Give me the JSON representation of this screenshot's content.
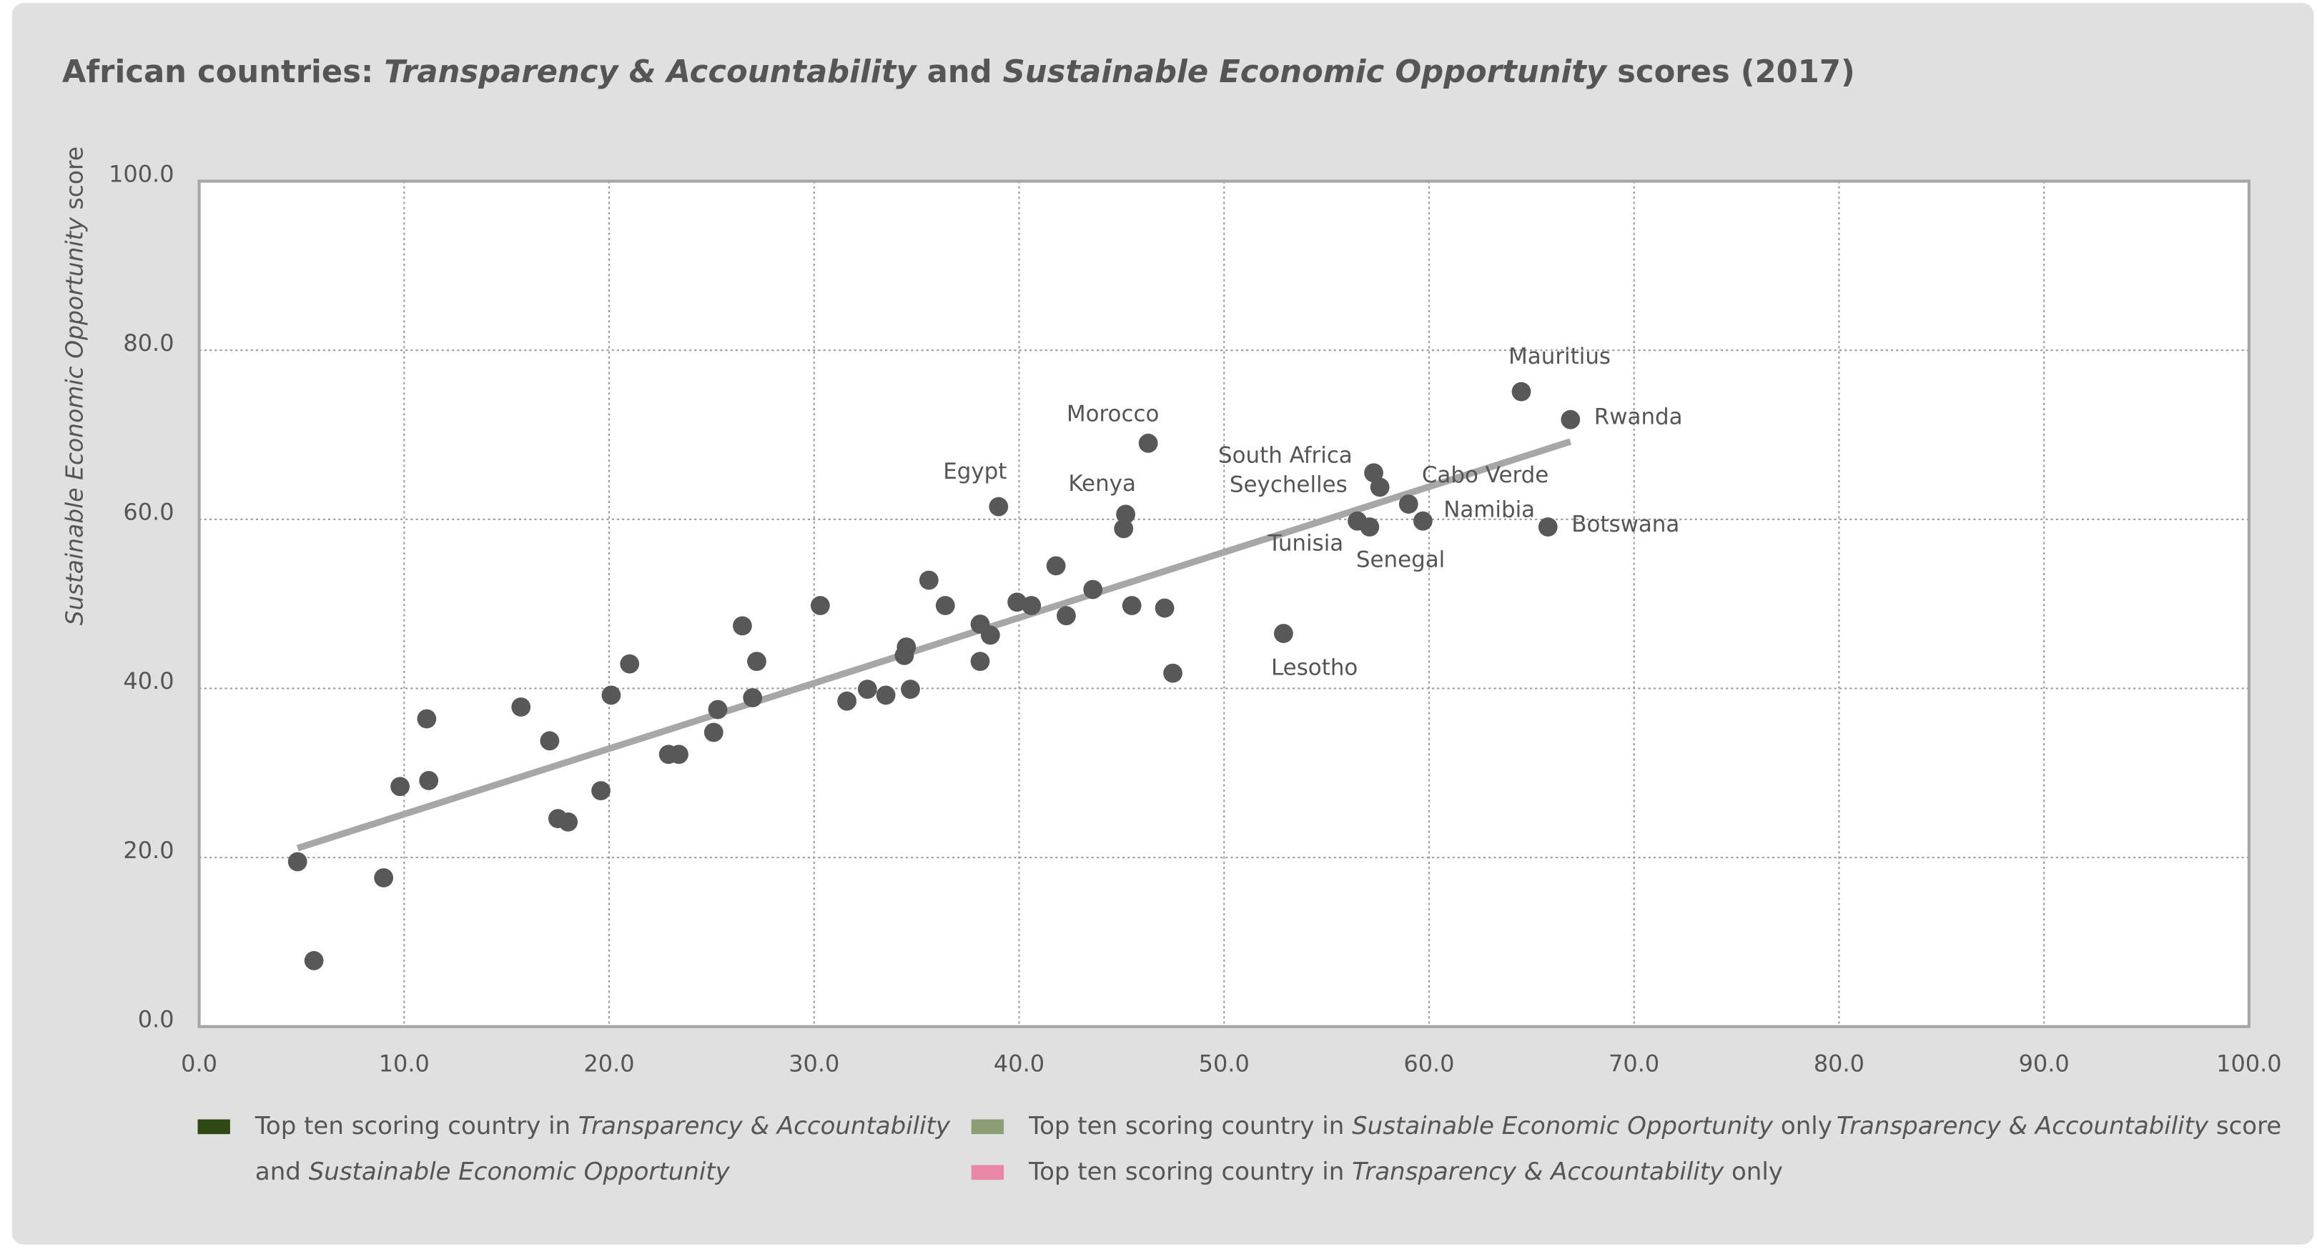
{
  "chart_data": {
    "type": "scatter",
    "title": [
      "African countries: ",
      "Transparency & Accountability",
      " and ",
      "Sustainable Economic Opportunity",
      " scores (2017)"
    ],
    "x_label": [
      "Transparency & Accountability",
      " score"
    ],
    "y_label": [
      "Sustainable Economic Opportunity",
      " score"
    ],
    "xlim": [
      0,
      100
    ],
    "ylim": [
      0,
      100
    ],
    "xticks": [
      {
        "value": 0,
        "label": "0.0"
      },
      {
        "value": 10,
        "label": "10.0"
      },
      {
        "value": 20,
        "label": "20.0"
      },
      {
        "value": 30,
        "label": "30.0"
      },
      {
        "value": 40,
        "label": "40.0"
      },
      {
        "value": 50,
        "label": "50.0"
      },
      {
        "value": 60,
        "label": "60.0"
      },
      {
        "value": 70,
        "label": "70.0"
      },
      {
        "value": 80,
        "label": "80.0"
      },
      {
        "value": 90,
        "label": "90.0"
      },
      {
        "value": 100,
        "label": "100.0"
      }
    ],
    "yticks": [
      {
        "value": 0,
        "label": "0.0"
      },
      {
        "value": 20,
        "label": "20.0"
      },
      {
        "value": 40,
        "label": "40.0"
      },
      {
        "value": 60,
        "label": "60.0"
      },
      {
        "value": 80,
        "label": "80.0"
      },
      {
        "value": 100,
        "label": "100.0"
      }
    ],
    "grid": true,
    "color": "#585858",
    "x": [
      4.8,
      5.6,
      9.0,
      9.8,
      11.1,
      11.2,
      15.7,
      17.1,
      17.5,
      18.0,
      19.6,
      20.1,
      21.0,
      22.9,
      23.4,
      25.1,
      25.3,
      26.5,
      27.0,
      27.2,
      30.3,
      31.6,
      32.6,
      33.5,
      34.4,
      34.5,
      34.7,
      35.6,
      36.4,
      38.1,
      38.1,
      38.6,
      39.0,
      39.9,
      40.6,
      41.8,
      42.3,
      43.6,
      45.1,
      45.2,
      45.5,
      46.3,
      47.1,
      47.5,
      52.9,
      56.5,
      57.1,
      57.3,
      57.6,
      59.0,
      59.7,
      64.5,
      65.8,
      66.9
    ],
    "values": [
      19.5,
      7.8,
      17.6,
      28.4,
      36.4,
      29.1,
      37.8,
      33.8,
      24.6,
      24.2,
      27.9,
      39.2,
      42.9,
      32.2,
      32.2,
      34.8,
      37.5,
      47.4,
      38.9,
      43.2,
      49.8,
      38.5,
      39.9,
      39.2,
      43.9,
      44.9,
      39.9,
      52.8,
      49.8,
      47.6,
      43.2,
      46.3,
      61.5,
      50.2,
      49.8,
      54.5,
      48.6,
      51.7,
      58.9,
      60.6,
      49.8,
      69.0,
      49.5,
      41.8,
      46.5,
      59.8,
      59.1,
      65.5,
      63.8,
      61.8,
      59.8,
      75.1,
      59.1,
      71.8
    ],
    "trendline": {
      "color": "#a6a8a6",
      "x": [
        4.8,
        66.9
      ],
      "y": [
        21.1,
        69.2
      ]
    },
    "legend": [
      {
        "color": "#2e4a12",
        "lines": [
          [
            "Top ten scoring country in ",
            "Transparency & Accountability"
          ],
          [
            "and ",
            "Sustainable Economic Opportunity"
          ]
        ]
      },
      {
        "color": "#8c9f74",
        "lines": [
          [
            "Top ten scoring country in ",
            "Sustainable Economic Opportunity",
            " only"
          ]
        ]
      },
      {
        "color": "#ea87a6",
        "lines": [
          [
            "Top ten scoring country in ",
            "Transparency & Accountability",
            " only"
          ]
        ]
      }
    ],
    "labels": [
      {
        "text": "Egypt",
        "point": 32,
        "group": 1
      },
      {
        "text": "Kenya",
        "point": 39,
        "group": 1
      },
      {
        "text": "Morocco",
        "point": 41,
        "group": 1
      },
      {
        "text": "Lesotho",
        "point": 44,
        "group": 2
      },
      {
        "text": "Tunisia",
        "point": 45,
        "group": 0
      },
      {
        "text": "Senegal",
        "point": 46,
        "group": 2
      },
      {
        "text": "South Africa",
        "point": 47,
        "group": 0
      },
      {
        "text": "Seychelles",
        "point": 48,
        "group": 0
      },
      {
        "text": "Cabo Verde",
        "point": 49,
        "group": 0
      },
      {
        "text": "Namibia",
        "point": 50,
        "group": 0
      },
      {
        "text": "Mauritius",
        "point": 51,
        "group": 0
      },
      {
        "text": "Botswana",
        "point": 52,
        "group": 2
      },
      {
        "text": "Rwanda",
        "point": 53,
        "group": 0
      }
    ]
  }
}
